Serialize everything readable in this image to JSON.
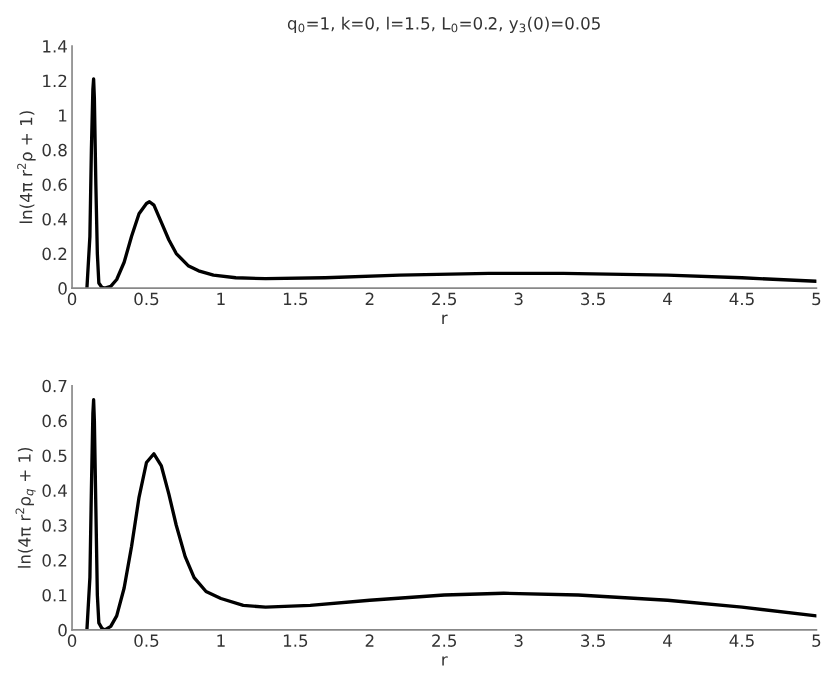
{
  "chart_data": [
    {
      "type": "line",
      "title": "q$_{0}$=1, k=0, l=1.5, L$_{0}$=0.2, y$_{3}$(0)=0.05",
      "xlabel": "r",
      "ylabel": "ln(4π r$^{2}$ρ + 1)",
      "xlim": [
        0,
        5
      ],
      "ylim": [
        0,
        1.4
      ],
      "xticks": [
        0,
        0.5,
        1,
        1.5,
        2,
        2.5,
        3,
        3.5,
        4,
        4.5,
        5
      ],
      "yticks": [
        0,
        0.2,
        0.4,
        0.6,
        0.8,
        1,
        1.2,
        1.4
      ],
      "grid": false,
      "marker": "none",
      "line_style": "solid",
      "series": [
        {
          "color": "#000000",
          "x": [
            0.1,
            0.12,
            0.13,
            0.14,
            0.145,
            0.15,
            0.16,
            0.17,
            0.18,
            0.2,
            0.22,
            0.26,
            0.3,
            0.35,
            0.4,
            0.45,
            0.5,
            0.52,
            0.55,
            0.6,
            0.65,
            0.7,
            0.78,
            0.85,
            0.95,
            1.1,
            1.3,
            1.7,
            2.2,
            2.8,
            3.3,
            4,
            4.5,
            5
          ],
          "values": [
            0,
            0.3,
            0.8,
            1.15,
            1.21,
            1.1,
            0.6,
            0.2,
            0.03,
            0.005,
            0,
            0.01,
            0.05,
            0.15,
            0.3,
            0.43,
            0.49,
            0.5,
            0.48,
            0.38,
            0.28,
            0.2,
            0.13,
            0.1,
            0.075,
            0.06,
            0.055,
            0.06,
            0.075,
            0.085,
            0.085,
            0.075,
            0.06,
            0.04
          ]
        }
      ]
    },
    {
      "type": "line",
      "xlabel": "r",
      "ylabel": "ln(4π r$^{2}$ρ$_{q}$ + 1)",
      "xlim": [
        0,
        5
      ],
      "ylim": [
        0,
        0.7
      ],
      "xticks": [
        0,
        0.5,
        1,
        1.5,
        2,
        2.5,
        3,
        3.5,
        4,
        4.5,
        5
      ],
      "yticks": [
        0,
        0.1,
        0.2,
        0.3,
        0.4,
        0.5,
        0.6,
        0.7
      ],
      "grid": false,
      "marker": "none",
      "line_style": "solid",
      "series": [
        {
          "color": "#000000",
          "x": [
            0.1,
            0.12,
            0.13,
            0.14,
            0.145,
            0.15,
            0.16,
            0.17,
            0.18,
            0.2,
            0.22,
            0.26,
            0.3,
            0.35,
            0.4,
            0.45,
            0.5,
            0.55,
            0.6,
            0.65,
            0.7,
            0.76,
            0.82,
            0.9,
            1.0,
            1.15,
            1.3,
            1.6,
            2.0,
            2.5,
            2.9,
            3.4,
            4,
            4.5,
            5
          ],
          "values": [
            0,
            0.15,
            0.4,
            0.62,
            0.66,
            0.6,
            0.35,
            0.1,
            0.02,
            0.005,
            0,
            0.01,
            0.04,
            0.12,
            0.24,
            0.38,
            0.48,
            0.505,
            0.47,
            0.39,
            0.3,
            0.21,
            0.15,
            0.11,
            0.09,
            0.07,
            0.065,
            0.07,
            0.085,
            0.1,
            0.105,
            0.1,
            0.085,
            0.065,
            0.04
          ]
        }
      ]
    }
  ]
}
